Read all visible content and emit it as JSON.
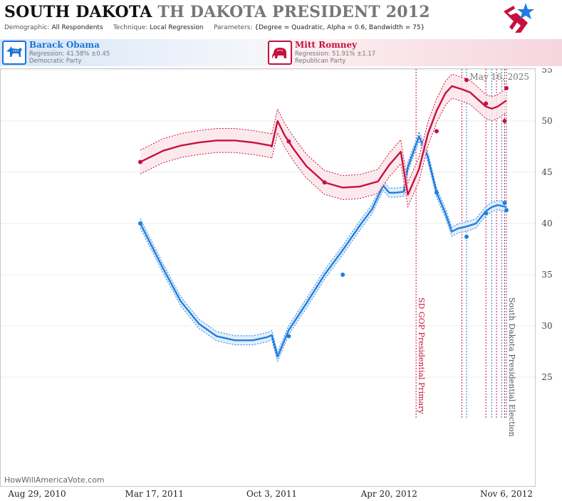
{
  "header": {
    "title_state": "SOUTH DAKOTA",
    "title_rest": "TH DAKOTA PRESIDENT 2012",
    "demographic_label": "Demographic:",
    "demographic_value": "All Respondents",
    "technique_label": "Technique:",
    "technique_value": "Local Regression",
    "parameters_label": "Parameters:",
    "parameters_value": "{Degree = Quadratic, Alpha = 0.6, Bandwidth = 75}"
  },
  "candidates": [
    {
      "name": "Barack Obama",
      "regression": "Regression: 41.58% ±0.45",
      "party": "Democratic Party",
      "color": "#1a73d9",
      "icon": "donkey-icon"
    },
    {
      "name": "Mitt Romney",
      "regression": "Regression: 51.91% ±1.17",
      "party": "Republican Party",
      "color": "#c8103e",
      "icon": "elephant-icon"
    }
  ],
  "colors": {
    "dem": "#1f7fe0",
    "rep": "#c8103e",
    "rep_band": "#fbe4ea",
    "dem_band": "#dceaf9"
  },
  "chart_data": {
    "type": "line",
    "date_stamp": "May 16, 2025",
    "watermark": "HowWillAmericaVote.com",
    "x_ticks": [
      "2010-08-29",
      "2011-03-17",
      "2011-10-03",
      "2012-04-20",
      "2012-11-06"
    ],
    "x_tick_labels": [
      "Aug 29, 2010",
      "Mar 17, 2011",
      "Oct 3, 2011",
      "Apr 20, 2012",
      "Nov 6, 2012"
    ],
    "xlim": [
      "2010-08-29",
      "2012-11-20"
    ],
    "y_ticks": [
      25,
      30,
      35,
      40,
      45,
      50,
      55
    ],
    "ylim": [
      22,
      58
    ],
    "events": [
      {
        "date": "2012-06-05",
        "label": "SD GOP Presidential Primary",
        "color": "#c8103e"
      },
      {
        "date": "2012-11-06",
        "label": "South Dakota Presidential Election",
        "color": "#555555"
      }
    ],
    "poll_dates": [
      "2012-08-22",
      "2012-08-30",
      "2012-10-02",
      "2012-10-12",
      "2012-10-20",
      "2012-10-29",
      "2012-11-03"
    ],
    "series": [
      {
        "name": "Barack Obama",
        "party": "dem",
        "line": [
          [
            "2011-02-21",
            40.0
          ],
          [
            "2011-04-01",
            35.6
          ],
          [
            "2011-05-01",
            32.4
          ],
          [
            "2011-06-01",
            30.2
          ],
          [
            "2011-07-01",
            29.0
          ],
          [
            "2011-08-01",
            28.6
          ],
          [
            "2011-09-01",
            28.6
          ],
          [
            "2011-09-25",
            28.9
          ],
          [
            "2011-10-03",
            29.1
          ],
          [
            "2011-10-13",
            27.0
          ],
          [
            "2011-11-01",
            29.6
          ],
          [
            "2011-12-01",
            32.2
          ],
          [
            "2012-01-01",
            35.0
          ],
          [
            "2012-02-01",
            37.4
          ],
          [
            "2012-03-01",
            39.8
          ],
          [
            "2012-03-22",
            41.4
          ],
          [
            "2012-04-10",
            43.7
          ],
          [
            "2012-04-20",
            43.0
          ],
          [
            "2012-05-01",
            43.0
          ],
          [
            "2012-05-15",
            43.1
          ],
          [
            "2012-05-22",
            45.5
          ],
          [
            "2012-06-10",
            48.5
          ],
          [
            "2012-06-25",
            46.5
          ],
          [
            "2012-07-10",
            43.0
          ],
          [
            "2012-07-25",
            41.0
          ],
          [
            "2012-08-05",
            39.2
          ],
          [
            "2012-08-15",
            39.5
          ],
          [
            "2012-08-30",
            39.7
          ],
          [
            "2012-09-15",
            40.0
          ],
          [
            "2012-10-02",
            41.2
          ],
          [
            "2012-10-12",
            41.6
          ],
          [
            "2012-10-22",
            41.8
          ],
          [
            "2012-11-06",
            41.6
          ]
        ],
        "band": 0.45,
        "points": [
          [
            "2011-02-21",
            40.0
          ],
          [
            "2011-11-01",
            29.0
          ],
          [
            "2012-02-01",
            35.0
          ],
          [
            "2012-07-10",
            43.0
          ],
          [
            "2012-08-30",
            38.7
          ],
          [
            "2012-10-02",
            41.0
          ],
          [
            "2012-11-03",
            42.0
          ],
          [
            "2012-11-06",
            41.3
          ]
        ]
      },
      {
        "name": "Mitt Romney",
        "party": "rep",
        "line": [
          [
            "2011-02-21",
            46.0
          ],
          [
            "2011-04-01",
            47.1
          ],
          [
            "2011-05-01",
            47.6
          ],
          [
            "2011-06-01",
            47.9
          ],
          [
            "2011-07-01",
            48.1
          ],
          [
            "2011-08-01",
            48.1
          ],
          [
            "2011-09-01",
            47.9
          ],
          [
            "2011-10-01",
            47.6
          ],
          [
            "2011-10-03",
            47.5
          ],
          [
            "2011-10-13",
            50.0
          ],
          [
            "2011-10-25",
            48.6
          ],
          [
            "2011-11-10",
            47.2
          ],
          [
            "2011-12-01",
            45.6
          ],
          [
            "2012-01-01",
            44.0
          ],
          [
            "2012-02-01",
            43.5
          ],
          [
            "2012-03-01",
            43.6
          ],
          [
            "2012-04-01",
            44.1
          ],
          [
            "2012-04-20",
            45.7
          ],
          [
            "2012-05-10",
            47.0
          ],
          [
            "2012-05-22",
            42.8
          ],
          [
            "2012-06-10",
            45.3
          ],
          [
            "2012-06-25",
            48.7
          ],
          [
            "2012-07-10",
            51.0
          ],
          [
            "2012-07-25",
            52.7
          ],
          [
            "2012-08-05",
            53.4
          ],
          [
            "2012-08-22",
            53.1
          ],
          [
            "2012-09-05",
            52.8
          ],
          [
            "2012-10-02",
            51.4
          ],
          [
            "2012-10-12",
            51.2
          ],
          [
            "2012-10-22",
            51.4
          ],
          [
            "2012-11-06",
            52.0
          ]
        ],
        "band": 1.17,
        "points": [
          [
            "2011-02-21",
            46.0
          ],
          [
            "2011-11-01",
            48.0
          ],
          [
            "2012-01-01",
            44.0
          ],
          [
            "2012-07-10",
            49.0
          ],
          [
            "2012-08-30",
            54.0
          ],
          [
            "2012-10-02",
            51.7
          ],
          [
            "2012-11-03",
            50.0
          ],
          [
            "2012-11-06",
            53.2
          ]
        ]
      }
    ]
  }
}
